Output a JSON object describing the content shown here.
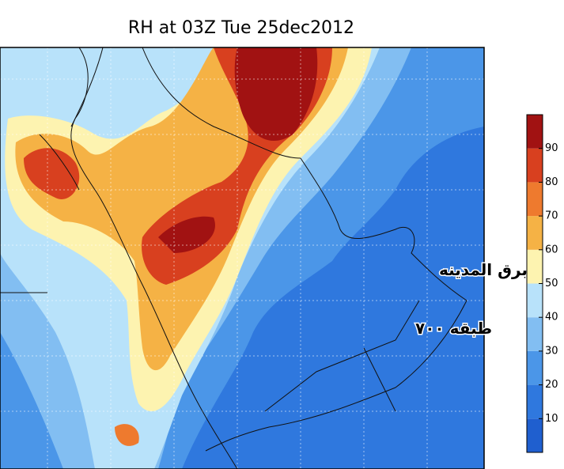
{
  "title": "RH at 03Z Tue 25dec2012",
  "annotations": [
    "برق المدينه",
    "طبقه ٧٠٠"
  ],
  "colorbar": {
    "ticks": [
      10,
      20,
      30,
      40,
      50,
      60,
      70,
      80,
      90
    ],
    "colors": [
      "#1f5fcf",
      "#2f78de",
      "#4b96e8",
      "#82bef2",
      "#b8e2fa",
      "#fdf3b0",
      "#f5b245",
      "#ee7a2e",
      "#d8401f",
      "#a11212"
    ]
  }
}
